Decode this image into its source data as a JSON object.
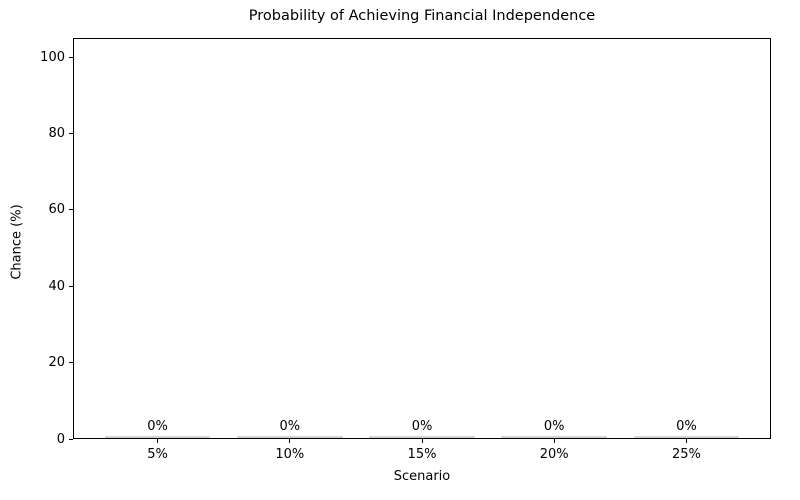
{
  "chart_data": {
    "type": "bar",
    "title": "Probability of Achieving Financial Independence",
    "xlabel": "Scenario",
    "ylabel": "Chance (%)",
    "categories": [
      "5%",
      "10%",
      "15%",
      "20%",
      "25%"
    ],
    "values": [
      0,
      0,
      0,
      0,
      0
    ],
    "bar_labels": [
      "0%",
      "0%",
      "0%",
      "0%",
      "0%"
    ],
    "yticks": [
      0,
      20,
      40,
      60,
      80,
      100
    ],
    "ylim": [
      0,
      105
    ],
    "grid": false,
    "legend_position": "none",
    "bar_color": "#cdd9cd",
    "spine_color": "#000000",
    "text_color": "#000000"
  }
}
